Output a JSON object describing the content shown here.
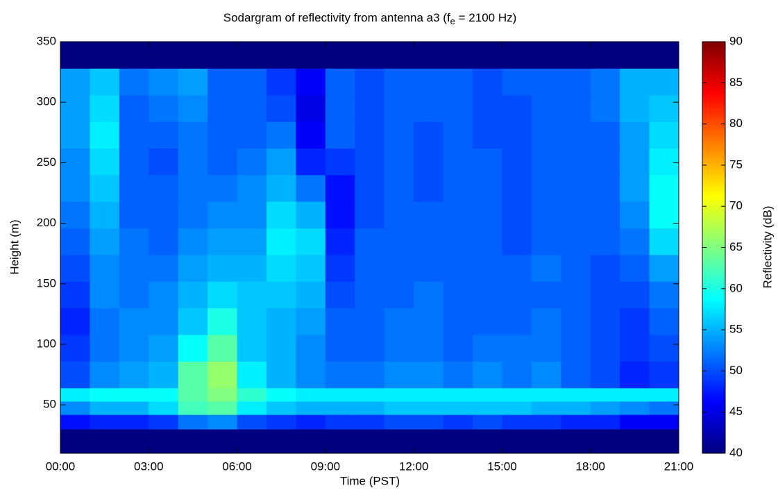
{
  "chart_data": {
    "type": "heatmap",
    "title": "Sodargram of reflectivity from antenna a3 (f",
    "title_subscript": "e",
    "title_end": " = 2100 Hz)",
    "x_label": "Time (PST)",
    "y_label": "Height (m)",
    "colorbar_label": "Reflectivity (dB)",
    "colormap": "jet",
    "x_bins": [
      0,
      1,
      2,
      3,
      4,
      5,
      6,
      7,
      8,
      9,
      10,
      11,
      12,
      13,
      14,
      15,
      16,
      17,
      18,
      19,
      20,
      21
    ],
    "y_bins": [
      10,
      30,
      42,
      53,
      64,
      86,
      108,
      130,
      152,
      174,
      196,
      218,
      240,
      262,
      284,
      306,
      328,
      350
    ],
    "z": [
      [
        40,
        40,
        40,
        40,
        40,
        40,
        40,
        40,
        40,
        40,
        40,
        40,
        40,
        40,
        40,
        40,
        40,
        40,
        40,
        40,
        40
      ],
      [
        47,
        48,
        48,
        49,
        52,
        53,
        50,
        49,
        48,
        49,
        49,
        50,
        50,
        49,
        50,
        49,
        49,
        48,
        48,
        46,
        46
      ],
      [
        53,
        55,
        55,
        57,
        62,
        63,
        58,
        56,
        55,
        55,
        55,
        56,
        56,
        56,
        56,
        56,
        55,
        55,
        54,
        53,
        52
      ],
      [
        58,
        59,
        59,
        59,
        63,
        65,
        61,
        59,
        58,
        58,
        58,
        58,
        58,
        58,
        58,
        58,
        58,
        58,
        58,
        58,
        58
      ],
      [
        50,
        53,
        54,
        55,
        63,
        66,
        58,
        55,
        53,
        52,
        52,
        53,
        53,
        52,
        53,
        52,
        53,
        51,
        50,
        48,
        49
      ],
      [
        49,
        52,
        53,
        54,
        59,
        63,
        56,
        55,
        53,
        51,
        51,
        52,
        52,
        51,
        52,
        52,
        52,
        51,
        50,
        49,
        50
      ],
      [
        48,
        52,
        53,
        53,
        56,
        60,
        56,
        55,
        54,
        51,
        51,
        52,
        52,
        51,
        51,
        51,
        52,
        51,
        50,
        49,
        51
      ],
      [
        49,
        53,
        52,
        53,
        55,
        57,
        56,
        56,
        55,
        50,
        51,
        51,
        52,
        51,
        51,
        51,
        51,
        51,
        50,
        50,
        52
      ],
      [
        50,
        53,
        52,
        52,
        54,
        55,
        55,
        57,
        56,
        49,
        51,
        51,
        51,
        51,
        51,
        51,
        52,
        51,
        50,
        51,
        54
      ],
      [
        51,
        54,
        52,
        51,
        53,
        54,
        54,
        58,
        57,
        48,
        51,
        51,
        51,
        51,
        51,
        50,
        51,
        51,
        51,
        52,
        57
      ],
      [
        52,
        55,
        51,
        51,
        52,
        53,
        53,
        57,
        55,
        47,
        50,
        51,
        51,
        51,
        51,
        50,
        51,
        51,
        51,
        53,
        59
      ],
      [
        53,
        56,
        51,
        51,
        52,
        52,
        53,
        55,
        52,
        47,
        50,
        51,
        50,
        51,
        51,
        50,
        51,
        51,
        51,
        54,
        59
      ],
      [
        53,
        57,
        51,
        50,
        52,
        51,
        52,
        54,
        48,
        49,
        50,
        51,
        50,
        51,
        51,
        50,
        51,
        51,
        51,
        54,
        58
      ],
      [
        54,
        58,
        51,
        51,
        52,
        51,
        51,
        52,
        46,
        51,
        50,
        51,
        50,
        51,
        50,
        50,
        51,
        51,
        51,
        54,
        57
      ],
      [
        54,
        57,
        51,
        52,
        53,
        51,
        51,
        50,
        45,
        51,
        50,
        51,
        51,
        51,
        50,
        50,
        51,
        51,
        52,
        55,
        56
      ],
      [
        54,
        56,
        52,
        53,
        54,
        51,
        51,
        49,
        46,
        51,
        50,
        51,
        51,
        51,
        50,
        51,
        51,
        51,
        52,
        55,
        55
      ],
      [
        40,
        40,
        40,
        40,
        40,
        40,
        40,
        40,
        40,
        40,
        40,
        40,
        40,
        40,
        40,
        40,
        40,
        40,
        40,
        40,
        40
      ]
    ],
    "xlim": [
      0,
      21
    ],
    "xticks": [
      {
        "value": 0,
        "label": "00:00"
      },
      {
        "value": 3,
        "label": "03:00"
      },
      {
        "value": 6,
        "label": "06:00"
      },
      {
        "value": 9,
        "label": "09:00"
      },
      {
        "value": 12,
        "label": "12:00"
      },
      {
        "value": 15,
        "label": "15:00"
      },
      {
        "value": 18,
        "label": "18:00"
      },
      {
        "value": 21,
        "label": "21:00"
      }
    ],
    "ylim": [
      10,
      350
    ],
    "yticks": [
      50,
      100,
      150,
      200,
      250,
      300,
      350
    ],
    "clim": [
      40,
      90
    ],
    "cticks": [
      40,
      45,
      50,
      55,
      60,
      65,
      70,
      75,
      80,
      85,
      90
    ]
  }
}
